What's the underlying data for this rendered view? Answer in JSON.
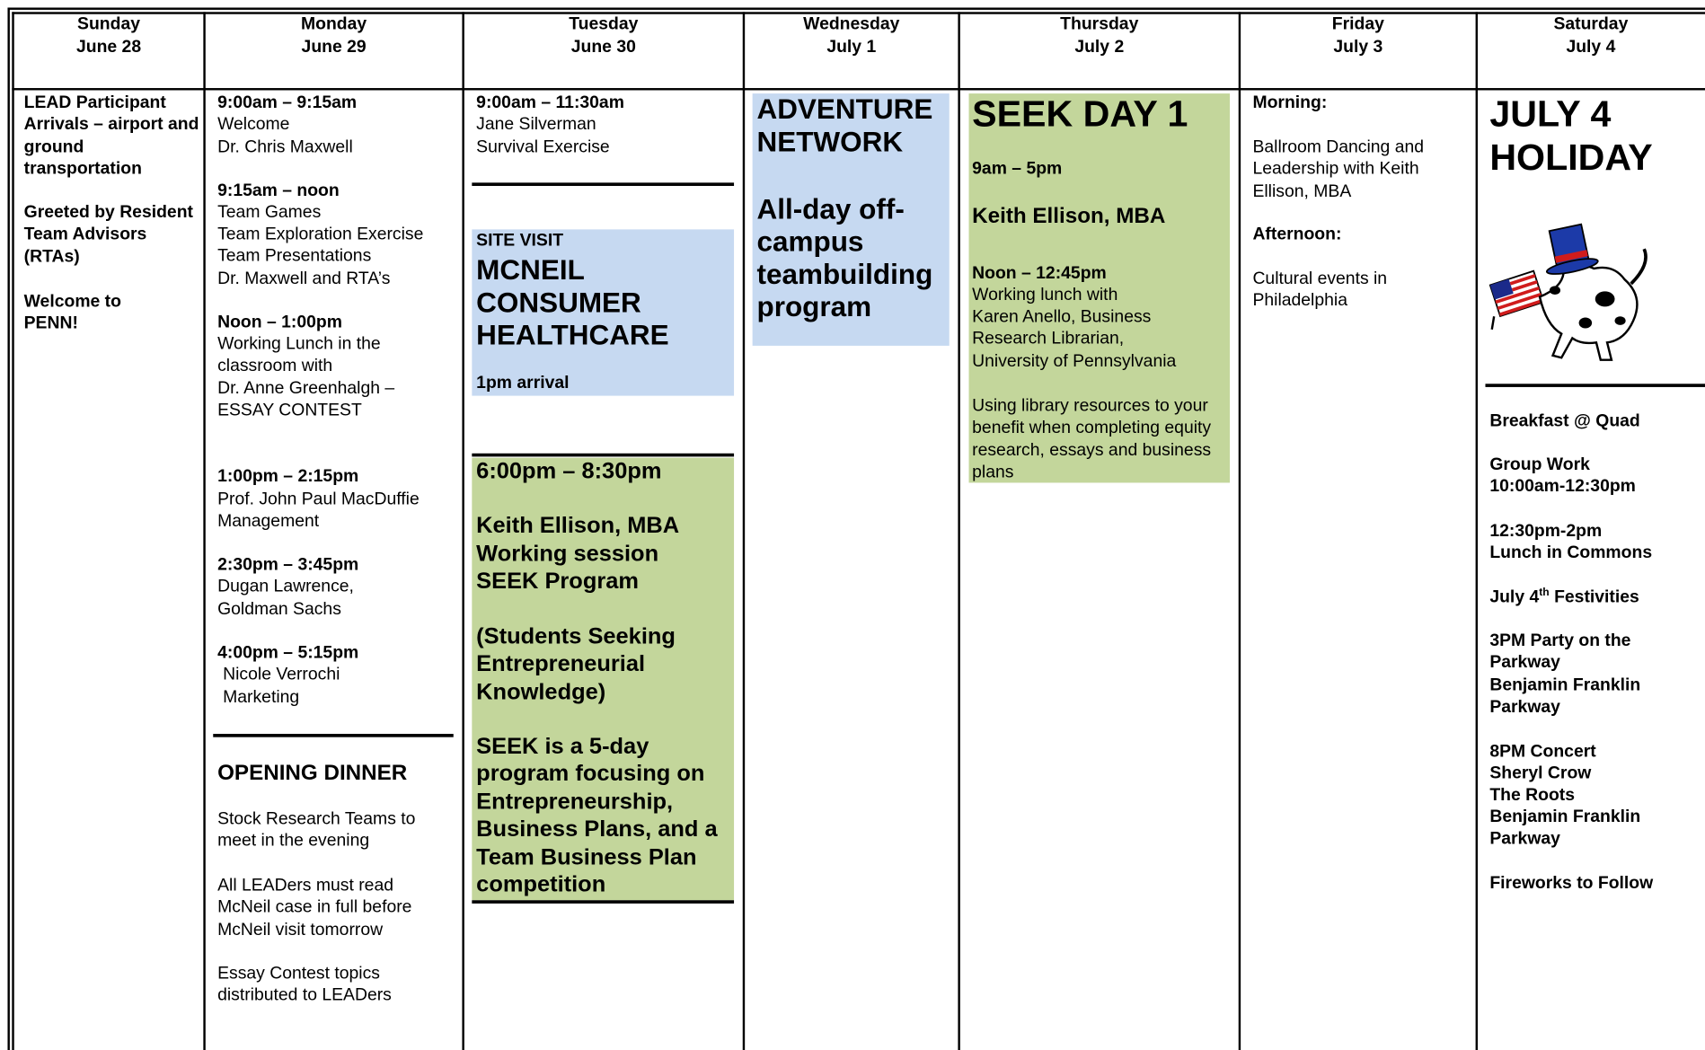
{
  "days": [
    {
      "day": "Sunday",
      "date": "June 28"
    },
    {
      "day": "Monday",
      "date": "June 29"
    },
    {
      "day": "Tuesday",
      "date": "June 30"
    },
    {
      "day": "Wednesday",
      "date": "July 1"
    },
    {
      "day": "Thursday",
      "date": "July 2"
    },
    {
      "day": "Friday",
      "date": "July 3"
    },
    {
      "day": "Saturday",
      "date": "July 4"
    }
  ],
  "sunday": [
    "LEAD Participant Arrivals – airport and ground transportation",
    "Greeted by Resident Team Advisors (RTAs)",
    "Welcome to PENN!"
  ],
  "monday": [
    "9:00am – 9:15am",
    "Welcome",
    "Dr. Chris Maxwell",
    "9:15am – noon",
    "Team Games",
    "Team Exploration Exercise",
    "Team Presentations",
    "Dr. Maxwell and RTA’s",
    "Noon – 1:00pm",
    "Working Lunch in the classroom with",
    "Dr. Anne Greenhalgh – ESSAY CONTEST",
    "1:00pm – 2:15pm",
    "Prof. John Paul MacDuffie",
    "Management",
    "2:30pm – 3:45pm",
    "Dugan Lawrence,",
    "Goldman Sachs",
    "4:00pm – 5:15pm",
    "Nicole Verrochi",
    "Marketing",
    "OPENING DINNER",
    "Stock Research Teams to meet in the evening",
    "All LEADers must read McNeil case in full before McNeil visit tomorrow",
    "Essay Contest topics distributed to LEADers"
  ],
  "tuesday": [
    "9:00am – 11:30am",
    "Jane Silverman",
    "Survival Exercise",
    "SITE VISIT",
    "MCNEIL CONSUMER HEALTHCARE",
    "1pm arrival",
    "6:00pm – 8:30pm",
    "Keith Ellison, MBA",
    "Working session",
    "SEEK Program",
    "(Students Seeking Entrepreneurial Knowledge)",
    "SEEK is a 5-day program focusing on Entrepreneurship, Business Plans, and a Team Business Plan competition"
  ],
  "wednesday": [
    "ADVENTURE NETWORK",
    "All-day off-campus teambuilding program"
  ],
  "thursday": [
    "SEEK DAY 1",
    "9am – 5pm",
    "Keith Ellison, MBA",
    "Noon – 12:45pm",
    "Working lunch with",
    "Karen Anello, Business Research Librarian, University of Pennsylvania",
    "Using library resources to your benefit when completing equity research, essays and business plans"
  ],
  "friday": [
    "Morning:",
    "Ballroom Dancing and Leadership with Keith Ellison, MBA",
    "Afternoon:",
    "Cultural events in Philadelphia"
  ],
  "saturday": [
    "JULY 4 HOLIDAY",
    "Breakfast @ Quad",
    "Group Work",
    "10:00am-12:30pm",
    "12:30pm-2pm",
    "Lunch in Commons",
    "July 4",
    "th",
    "Festivities",
    "3PM Party on the Parkway",
    "Benjamin Franklin Parkway",
    "8PM Concert",
    "Sheryl Crow",
    "The Roots",
    "Benjamin Franklin Parkway",
    "Fireworks to Follow"
  ]
}
